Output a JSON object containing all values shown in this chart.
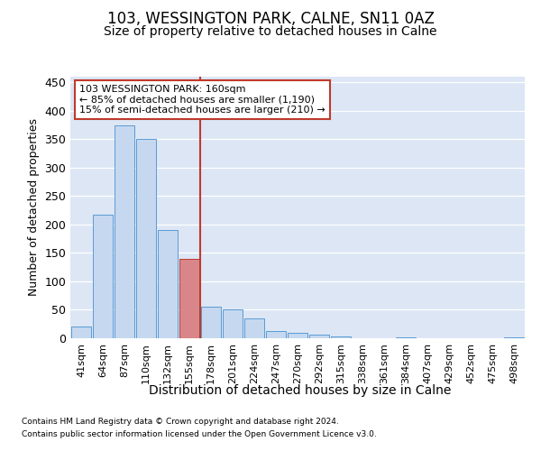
{
  "title": "103, WESSINGTON PARK, CALNE, SN11 0AZ",
  "subtitle": "Size of property relative to detached houses in Calne",
  "xlabel": "Distribution of detached houses by size in Calne",
  "ylabel": "Number of detached properties",
  "footer_line1": "Contains HM Land Registry data © Crown copyright and database right 2024.",
  "footer_line2": "Contains public sector information licensed under the Open Government Licence v3.0.",
  "bar_labels": [
    "41sqm",
    "64sqm",
    "87sqm",
    "110sqm",
    "132sqm",
    "155sqm",
    "178sqm",
    "201sqm",
    "224sqm",
    "247sqm",
    "270sqm",
    "292sqm",
    "315sqm",
    "338sqm",
    "361sqm",
    "384sqm",
    "407sqm",
    "429sqm",
    "452sqm",
    "475sqm",
    "498sqm"
  ],
  "bar_values": [
    20,
    218,
    375,
    350,
    190,
    140,
    55,
    50,
    35,
    12,
    10,
    7,
    3,
    0,
    0,
    1,
    0,
    0,
    0,
    0,
    1
  ],
  "bar_color": "#c5d8ef",
  "bar_edge_color": "#5b9bd5",
  "highlight_bar_index": 5,
  "highlight_bar_color": "#d9868a",
  "highlight_bar_edge_color": "#c0392b",
  "vline_x": 5.5,
  "vline_color": "#c0392b",
  "annotation_line1": "103 WESSINGTON PARK: 160sqm",
  "annotation_line2": "← 85% of detached houses are smaller (1,190)",
  "annotation_line3": "15% of semi-detached houses are larger (210) →",
  "annotation_box_facecolor": "#ffffff",
  "annotation_box_edgecolor": "#c0392b",
  "ylim": [
    0,
    460
  ],
  "yticks": [
    0,
    50,
    100,
    150,
    200,
    250,
    300,
    350,
    400,
    450
  ],
  "outer_background": "#ffffff",
  "plot_background": "#dce6f5",
  "grid_color": "#ffffff",
  "title_fontsize": 12,
  "subtitle_fontsize": 10,
  "ylabel_fontsize": 9,
  "xlabel_fontsize": 10,
  "tick_fontsize": 8,
  "annotation_fontsize": 8,
  "footer_fontsize": 6.5
}
